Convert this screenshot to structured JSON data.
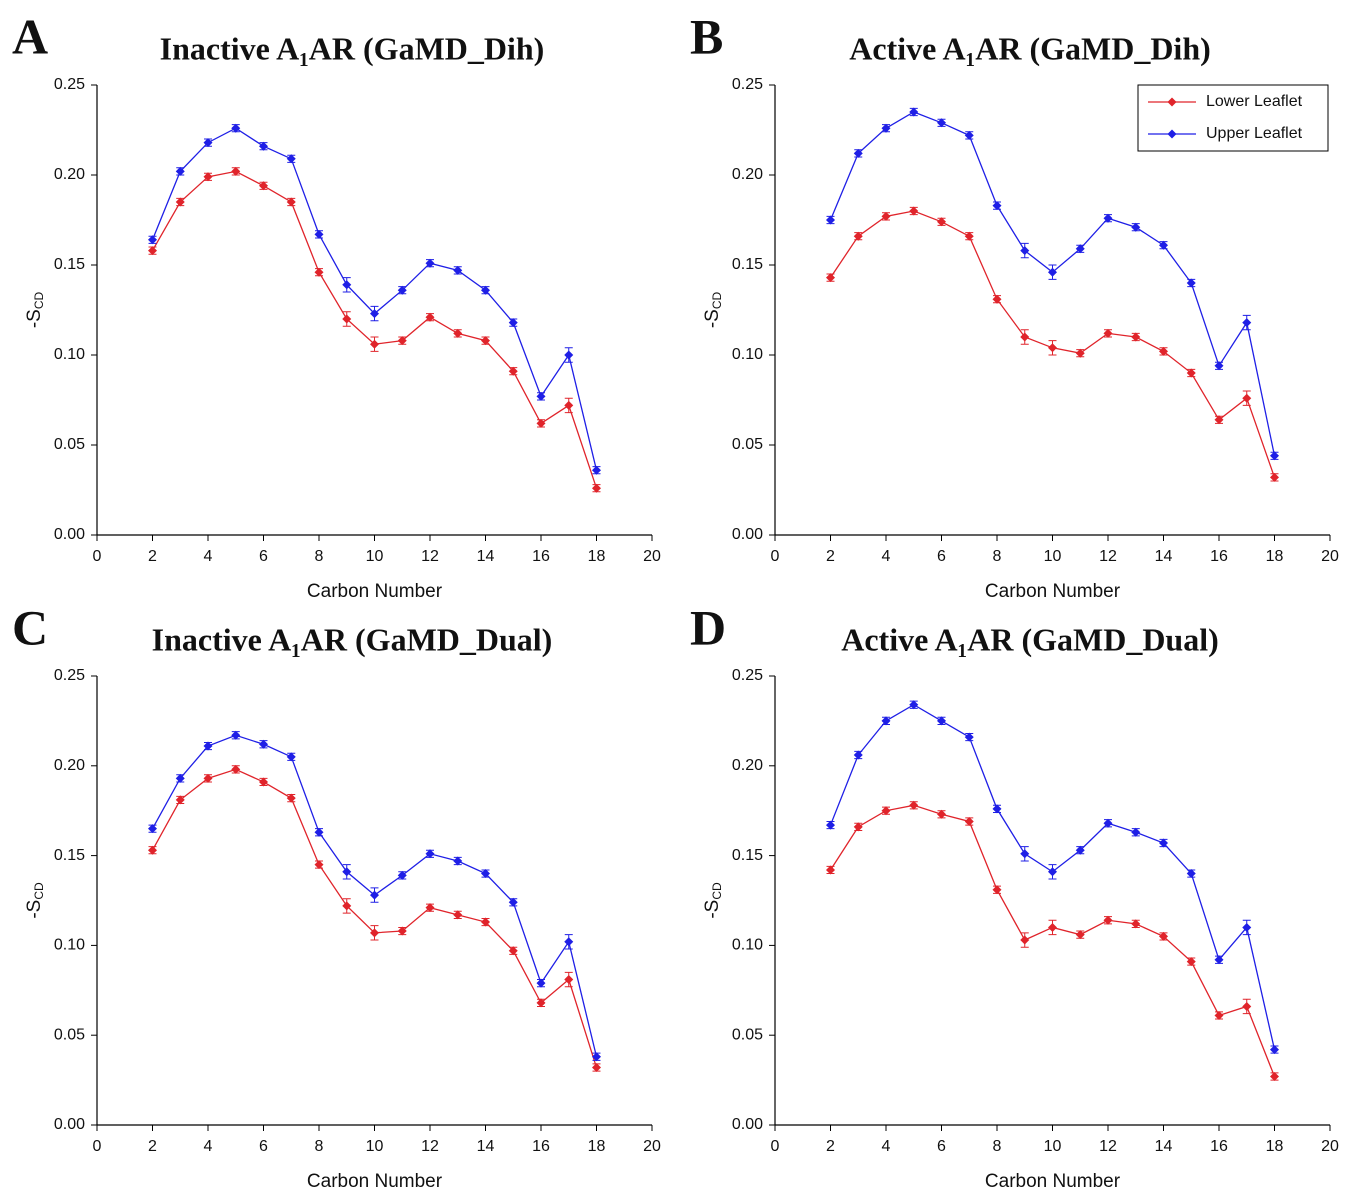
{
  "chart_data": [
    {
      "type": "line",
      "panel_label": "A",
      "title": "Inactive A₁AR (GaMD_Dih)",
      "xlabel": "Carbon Number",
      "ylabel": "-S",
      "ylabel_subscript": "CD",
      "x": [
        2,
        3,
        4,
        5,
        6,
        7,
        8,
        9,
        10,
        11,
        12,
        13,
        14,
        15,
        16,
        17,
        18
      ],
      "xlim": [
        0,
        20
      ],
      "xticks": [
        0,
        2,
        4,
        6,
        8,
        10,
        12,
        14,
        16,
        18,
        20
      ],
      "ylim": [
        0,
        0.25
      ],
      "yticks": [
        {
          "value": 0,
          "label": "0.00"
        },
        0.05,
        {
          "value": 0.1,
          "label": "0.10"
        },
        0.15,
        {
          "value": 0.2,
          "label": "0.20"
        },
        0.25
      ],
      "series": [
        {
          "color": "#e0242b",
          "values": [
            0.158,
            0.185,
            0.199,
            0.202,
            0.194,
            0.185,
            0.146,
            0.12,
            0.106,
            0.108,
            0.121,
            0.112,
            0.108,
            0.091,
            0.062,
            0.072,
            0.026
          ],
          "errors": [
            0.002,
            0.002,
            0.002,
            0.002,
            0.002,
            0.002,
            0.002,
            0.004,
            0.004,
            0.002,
            0.002,
            0.002,
            0.002,
            0.002,
            0.002,
            0.004,
            0.002
          ]
        },
        {
          "color": "#1f1fe6",
          "values": [
            0.164,
            0.202,
            0.218,
            0.226,
            0.216,
            0.209,
            0.167,
            0.139,
            0.123,
            0.136,
            0.151,
            0.147,
            0.136,
            0.118,
            0.077,
            0.1,
            0.036
          ],
          "errors": [
            0.002,
            0.002,
            0.002,
            0.002,
            0.002,
            0.002,
            0.002,
            0.004,
            0.004,
            0.002,
            0.002,
            0.002,
            0.002,
            0.002,
            0.002,
            0.004,
            0.002
          ]
        }
      ]
    },
    {
      "type": "line",
      "panel_label": "B",
      "title": "Active A₁AR (GaMD_Dih)",
      "xlabel": "Carbon Number",
      "ylabel": "-S",
      "ylabel_subscript": "CD",
      "legend": "upper right",
      "x": [
        2,
        3,
        4,
        5,
        6,
        7,
        8,
        9,
        10,
        11,
        12,
        13,
        14,
        15,
        16,
        17,
        18
      ],
      "xlim": [
        0,
        20
      ],
      "xticks": [
        0,
        2,
        4,
        6,
        8,
        10,
        12,
        14,
        16,
        18,
        20
      ],
      "ylim": [
        0,
        0.25
      ],
      "yticks": [
        {
          "value": 0,
          "label": "0.00"
        },
        0.05,
        {
          "value": 0.1,
          "label": "0.10"
        },
        0.15,
        {
          "value": 0.2,
          "label": "0.20"
        },
        0.25
      ],
      "series": [
        {
          "name": "Lower Leaflet",
          "color": "#e0242b",
          "values": [
            0.143,
            0.166,
            0.177,
            0.18,
            0.174,
            0.166,
            0.131,
            0.11,
            0.104,
            0.101,
            0.112,
            0.11,
            0.102,
            0.09,
            0.064,
            0.076,
            0.032
          ],
          "errors": [
            0.002,
            0.002,
            0.002,
            0.002,
            0.002,
            0.002,
            0.002,
            0.004,
            0.004,
            0.002,
            0.002,
            0.002,
            0.002,
            0.002,
            0.002,
            0.004,
            0.002
          ]
        },
        {
          "name": "Upper Leaflet",
          "color": "#1f1fe6",
          "values": [
            0.175,
            0.212,
            0.226,
            0.235,
            0.229,
            0.222,
            0.183,
            0.158,
            0.146,
            0.159,
            0.176,
            0.171,
            0.161,
            0.14,
            0.094,
            0.118,
            0.044
          ],
          "errors": [
            0.002,
            0.002,
            0.002,
            0.002,
            0.002,
            0.002,
            0.002,
            0.004,
            0.004,
            0.002,
            0.002,
            0.002,
            0.002,
            0.002,
            0.002,
            0.004,
            0.002
          ]
        }
      ]
    },
    {
      "type": "line",
      "panel_label": "C",
      "title": "Inactive A₁AR (GaMD_Dual)",
      "xlabel": "Carbon Number",
      "ylabel": "-S",
      "ylabel_subscript": "CD",
      "x": [
        2,
        3,
        4,
        5,
        6,
        7,
        8,
        9,
        10,
        11,
        12,
        13,
        14,
        15,
        16,
        17,
        18
      ],
      "xlim": [
        0,
        20
      ],
      "xticks": [
        0,
        2,
        4,
        6,
        8,
        10,
        12,
        14,
        16,
        18,
        20
      ],
      "ylim": [
        0,
        0.25
      ],
      "yticks": [
        {
          "value": 0,
          "label": "0.00"
        },
        0.05,
        {
          "value": 0.1,
          "label": "0.10"
        },
        0.15,
        {
          "value": 0.2,
          "label": "0.20"
        },
        0.25
      ],
      "series": [
        {
          "color": "#e0242b",
          "values": [
            0.153,
            0.181,
            0.193,
            0.198,
            0.191,
            0.182,
            0.145,
            0.122,
            0.107,
            0.108,
            0.121,
            0.117,
            0.113,
            0.097,
            0.068,
            0.081,
            0.032
          ],
          "errors": [
            0.002,
            0.002,
            0.002,
            0.002,
            0.002,
            0.002,
            0.002,
            0.004,
            0.004,
            0.002,
            0.002,
            0.002,
            0.002,
            0.002,
            0.002,
            0.004,
            0.002
          ]
        },
        {
          "color": "#1f1fe6",
          "values": [
            0.165,
            0.193,
            0.211,
            0.217,
            0.212,
            0.205,
            0.163,
            0.141,
            0.128,
            0.139,
            0.151,
            0.147,
            0.14,
            0.124,
            0.079,
            0.102,
            0.038
          ],
          "errors": [
            0.002,
            0.002,
            0.002,
            0.002,
            0.002,
            0.002,
            0.002,
            0.004,
            0.004,
            0.002,
            0.002,
            0.002,
            0.002,
            0.002,
            0.002,
            0.004,
            0.002
          ]
        }
      ]
    },
    {
      "type": "line",
      "panel_label": "D",
      "title": "Active A₁AR (GaMD_Dual)",
      "xlabel": "Carbon Number",
      "ylabel": "-S",
      "ylabel_subscript": "CD",
      "x": [
        2,
        3,
        4,
        5,
        6,
        7,
        8,
        9,
        10,
        11,
        12,
        13,
        14,
        15,
        16,
        17,
        18
      ],
      "xlim": [
        0,
        20
      ],
      "xticks": [
        0,
        2,
        4,
        6,
        8,
        10,
        12,
        14,
        16,
        18,
        20
      ],
      "ylim": [
        0,
        0.25
      ],
      "yticks": [
        {
          "value": 0,
          "label": "0.00"
        },
        0.05,
        {
          "value": 0.1,
          "label": "0.10"
        },
        0.15,
        {
          "value": 0.2,
          "label": "0.20"
        },
        0.25
      ],
      "series": [
        {
          "color": "#e0242b",
          "values": [
            0.142,
            0.166,
            0.175,
            0.178,
            0.173,
            0.169,
            0.131,
            0.103,
            0.11,
            0.106,
            0.114,
            0.112,
            0.105,
            0.091,
            0.061,
            0.066,
            0.027
          ],
          "errors": [
            0.002,
            0.002,
            0.002,
            0.002,
            0.002,
            0.002,
            0.002,
            0.004,
            0.004,
            0.002,
            0.002,
            0.002,
            0.002,
            0.002,
            0.002,
            0.004,
            0.002
          ]
        },
        {
          "color": "#1f1fe6",
          "values": [
            0.167,
            0.206,
            0.225,
            0.234,
            0.225,
            0.216,
            0.176,
            0.151,
            0.141,
            0.153,
            0.168,
            0.163,
            0.157,
            0.14,
            0.092,
            0.11,
            0.042
          ],
          "errors": [
            0.002,
            0.002,
            0.002,
            0.002,
            0.002,
            0.002,
            0.002,
            0.004,
            0.004,
            0.002,
            0.002,
            0.002,
            0.002,
            0.002,
            0.002,
            0.004,
            0.002
          ]
        }
      ]
    }
  ]
}
